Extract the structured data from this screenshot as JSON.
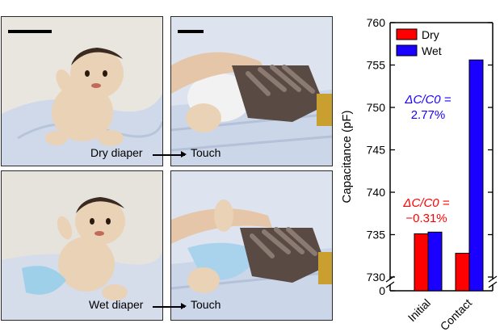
{
  "panels": [
    {
      "name": "dry-baby-photo",
      "scale_bar": true
    },
    {
      "name": "dry-touch-photo",
      "scale_bar": true
    },
    {
      "name": "wet-baby-photo",
      "scale_bar": false
    },
    {
      "name": "wet-touch-photo",
      "scale_bar": false
    }
  ],
  "captions": {
    "dry_left": "Dry diaper",
    "dry_right": "Touch",
    "wet_left": "Wet diaper",
    "wet_right": "Touch"
  },
  "colors": {
    "dry": "#ff0000",
    "wet": "#1a00ff",
    "dry_annotation": "#ff0000",
    "wet_annotation": "#1a00ff",
    "skin": "#ead2b7",
    "sheet": "#cfd9ea",
    "glove": "#5a4a44"
  },
  "chart_data": {
    "type": "bar",
    "categories": [
      "Initial",
      "Contact"
    ],
    "series": [
      {
        "name": "Dry",
        "values": [
          735.1,
          732.8
        ]
      },
      {
        "name": "Wet",
        "values": [
          735.3,
          755.6
        ]
      }
    ],
    "title": "",
    "xlabel": "",
    "ylabel": "Capacitance (pF)",
    "ylim": [
      730,
      760
    ],
    "yticks": [
      730,
      735,
      740,
      745,
      750,
      755,
      760
    ],
    "y_extra_tick": 0,
    "axis_break": true,
    "legend_position": "top-left",
    "grid": false,
    "annotations": [
      {
        "series": "Wet",
        "line1": "ΔC/C0 =",
        "line2": "2.77%"
      },
      {
        "series": "Dry",
        "line1": "ΔC/C0 =",
        "line2": "−0.31%"
      }
    ]
  }
}
